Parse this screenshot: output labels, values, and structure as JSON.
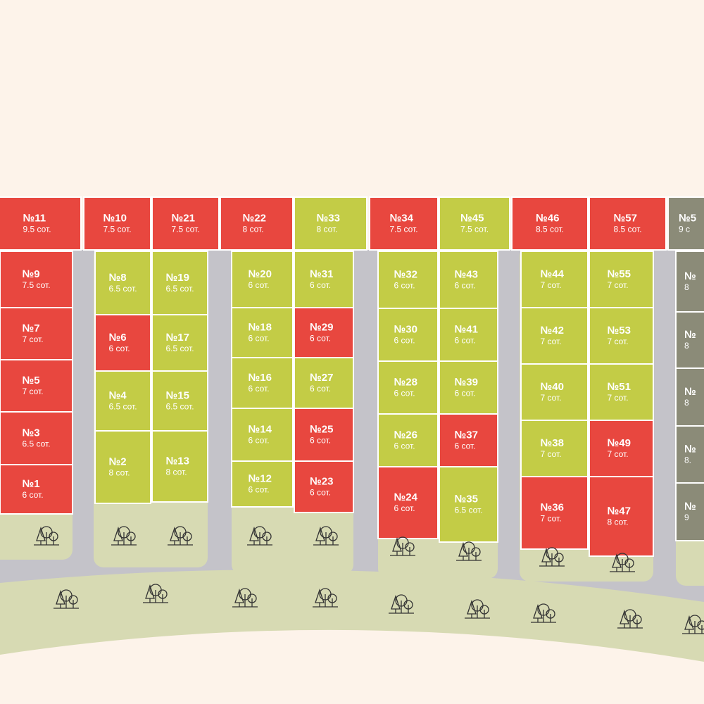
{
  "plots": [
    {
      "number": "№11",
      "area": "9.5 сот.",
      "color": "#e8473f"
    },
    {
      "number": "№10",
      "area": "7.5 сот.",
      "color": "#e8473f"
    },
    {
      "number": "№21",
      "area": "7.5 сот.",
      "color": "#e8473f"
    },
    {
      "number": "№22",
      "area": "8 сот.",
      "color": "#e8473f"
    },
    {
      "number": "№33",
      "area": "8 сот.",
      "color": "#c3cc46"
    },
    {
      "number": "№34",
      "area": "7.5 сот.",
      "color": "#e8473f"
    },
    {
      "number": "№45",
      "area": "7.5 сот.",
      "color": "#c3cc46"
    },
    {
      "number": "№46",
      "area": "8.5 сот.",
      "color": "#e8473f"
    },
    {
      "number": "№57",
      "area": "8.5 сот.",
      "color": "#e8473f"
    },
    {
      "number": "№5",
      "area": "9 с",
      "color": "#8b8b78"
    },
    {
      "number": "№9",
      "area": "7.5 сот.",
      "color": "#e8473f"
    },
    {
      "number": "№7",
      "area": "7 сот.",
      "color": "#e8473f"
    },
    {
      "number": "№5",
      "area": "7 сот.",
      "color": "#e8473f"
    },
    {
      "number": "№3",
      "area": "6.5 сот.",
      "color": "#e8473f"
    },
    {
      "number": "№1",
      "area": "6 сот.",
      "color": "#e8473f"
    },
    {
      "number": "№8",
      "area": "6.5 сот.",
      "color": "#c3cc46"
    },
    {
      "number": "№6",
      "area": "6 сот.",
      "color": "#e8473f"
    },
    {
      "number": "№4",
      "area": "6.5 сот.",
      "color": "#c3cc46"
    },
    {
      "number": "№2",
      "area": "8 сот.",
      "color": "#c3cc46"
    },
    {
      "number": "№19",
      "area": "6.5 сот.",
      "color": "#c3cc46"
    },
    {
      "number": "№17",
      "area": "6.5 сот.",
      "color": "#c3cc46"
    },
    {
      "number": "№15",
      "area": "6.5 сот.",
      "color": "#c3cc46"
    },
    {
      "number": "№13",
      "area": "8 сот.",
      "color": "#c3cc46"
    },
    {
      "number": "№20",
      "area": "6 сот.",
      "color": "#c3cc46"
    },
    {
      "number": "№18",
      "area": "6 сот.",
      "color": "#c3cc46"
    },
    {
      "number": "№16",
      "area": "6 сот.",
      "color": "#c3cc46"
    },
    {
      "number": "№14",
      "area": "6 сот.",
      "color": "#c3cc46"
    },
    {
      "number": "№12",
      "area": "6 сот.",
      "color": "#c3cc46"
    },
    {
      "number": "№31",
      "area": "6 сот.",
      "color": "#c3cc46"
    },
    {
      "number": "№29",
      "area": "6 сот.",
      "color": "#e8473f"
    },
    {
      "number": "№27",
      "area": "6 сот.",
      "color": "#c3cc46"
    },
    {
      "number": "№25",
      "area": "6 сот.",
      "color": "#e8473f"
    },
    {
      "number": "№23",
      "area": "6 сот.",
      "color": "#e8473f"
    },
    {
      "number": "№32",
      "area": "6 сот.",
      "color": "#c3cc46"
    },
    {
      "number": "№30",
      "area": "6 сот.",
      "color": "#c3cc46"
    },
    {
      "number": "№28",
      "area": "6 сот.",
      "color": "#c3cc46"
    },
    {
      "number": "№26",
      "area": "6 сот.",
      "color": "#c3cc46"
    },
    {
      "number": "№24",
      "area": "6 сот.",
      "color": "#e8473f"
    },
    {
      "number": "№43",
      "area": "6 сот.",
      "color": "#c3cc46"
    },
    {
      "number": "№41",
      "area": "6 сот.",
      "color": "#c3cc46"
    },
    {
      "number": "№39",
      "area": "6 сот.",
      "color": "#c3cc46"
    },
    {
      "number": "№37",
      "area": "6 сот.",
      "color": "#e8473f"
    },
    {
      "number": "№35",
      "area": "6.5 сот.",
      "color": "#c3cc46"
    },
    {
      "number": "№44",
      "area": "7 сот.",
      "color": "#c3cc46"
    },
    {
      "number": "№42",
      "area": "7 сот.",
      "color": "#c3cc46"
    },
    {
      "number": "№40",
      "area": "7 сот.",
      "color": "#c3cc46"
    },
    {
      "number": "№38",
      "area": "7 сот.",
      "color": "#c3cc46"
    },
    {
      "number": "№36",
      "area": "7 сот.",
      "color": "#e8473f"
    },
    {
      "number": "№55",
      "area": "7 сот.",
      "color": "#c3cc46"
    },
    {
      "number": "№53",
      "area": "7 сот.",
      "color": "#c3cc46"
    },
    {
      "number": "№51",
      "area": "7 сот.",
      "color": "#c3cc46"
    },
    {
      "number": "№49",
      "area": "7 сот.",
      "color": "#e8473f"
    },
    {
      "number": "№47",
      "area": "8 сот.",
      "color": "#e8473f"
    },
    {
      "number": "№",
      "area": "8",
      "color": "#8b8b78"
    },
    {
      "number": "№",
      "area": "8",
      "color": "#8b8b78"
    },
    {
      "number": "№",
      "area": "8",
      "color": "#8b8b78"
    },
    {
      "number": "№",
      "area": "8.",
      "color": "#8b8b78"
    },
    {
      "number": "№",
      "area": "9",
      "color": "#8b8b78"
    }
  ]
}
